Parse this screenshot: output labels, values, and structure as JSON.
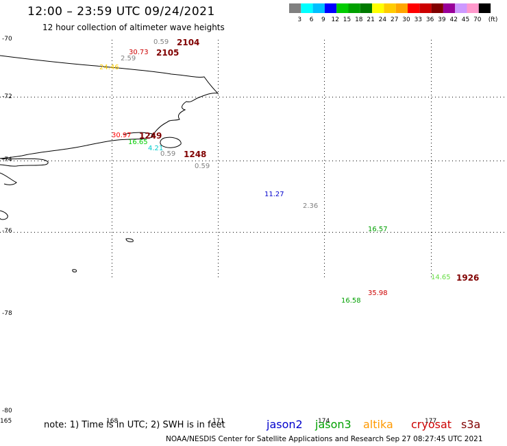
{
  "header": {
    "title": "12:00 – 23:59 UTC 09/24/2021",
    "subtitle": "12 hour collection of altimeter wave heights"
  },
  "legend": {
    "colors": [
      "#808080",
      "#00ffff",
      "#00bfff",
      "#0000ff",
      "#00cc00",
      "#00a000",
      "#007a00",
      "#ffff00",
      "#ffcc00",
      "#ffa500",
      "#ff0000",
      "#cc0000",
      "#800000",
      "#990099",
      "#cc99ff",
      "#ff99cc",
      "#000000"
    ],
    "labels": [
      "3",
      "6",
      "9",
      "12",
      "15",
      "18",
      "21",
      "24",
      "27",
      "30",
      "33",
      "36",
      "39",
      "42",
      "45",
      "70"
    ],
    "unit": "(ft)"
  },
  "axes": {
    "lat_labels": [
      "-70",
      "-72",
      "-74",
      "-76",
      "-78",
      "-80"
    ],
    "lon_labels": [
      "165",
      "168",
      "171",
      "174",
      "177"
    ]
  },
  "observations": [
    {
      "text": "0.59",
      "color": "#808080"
    },
    {
      "text": "30.73",
      "color": "#cc0000"
    },
    {
      "text": "2.59",
      "color": "#808080"
    },
    {
      "text": "24.46",
      "color": "#ffcc00"
    },
    {
      "text": "30.97",
      "color": "#ff0000"
    },
    {
      "text": "16.65",
      "color": "#00cc00"
    },
    {
      "text": "4.21",
      "color": "#00cccc"
    },
    {
      "text": "0.59",
      "color": "#808080"
    },
    {
      "text": "0.59",
      "color": "#808080"
    },
    {
      "text": "11.27",
      "color": "#0000cc"
    },
    {
      "text": "2.36",
      "color": "#808080"
    },
    {
      "text": "16.57",
      "color": "#00a000"
    },
    {
      "text": "14.65",
      "color": "#66dd44"
    },
    {
      "text": "35.98",
      "color": "#cc0000"
    },
    {
      "text": "16.58",
      "color": "#00a000"
    }
  ],
  "pass_ids": [
    "2104",
    "2105",
    "1249",
    "1248",
    "1926"
  ],
  "footer": {
    "note": "note: 1) Time is in UTC; 2) SWH is in feet",
    "satellites": [
      {
        "name": "jason2",
        "color": "#0000cc"
      },
      {
        "name": "jason3",
        "color": "#00a000"
      },
      {
        "name": "altika",
        "color": "#ff9900"
      },
      {
        "name": "cryosat",
        "color": "#cc0000"
      },
      {
        "name": "s3a",
        "color": "#800000"
      }
    ],
    "credit": "NOAA/NESDIS Center for Satellite Applications and Research    Sep 27 08:27:45 UTC 2021"
  }
}
